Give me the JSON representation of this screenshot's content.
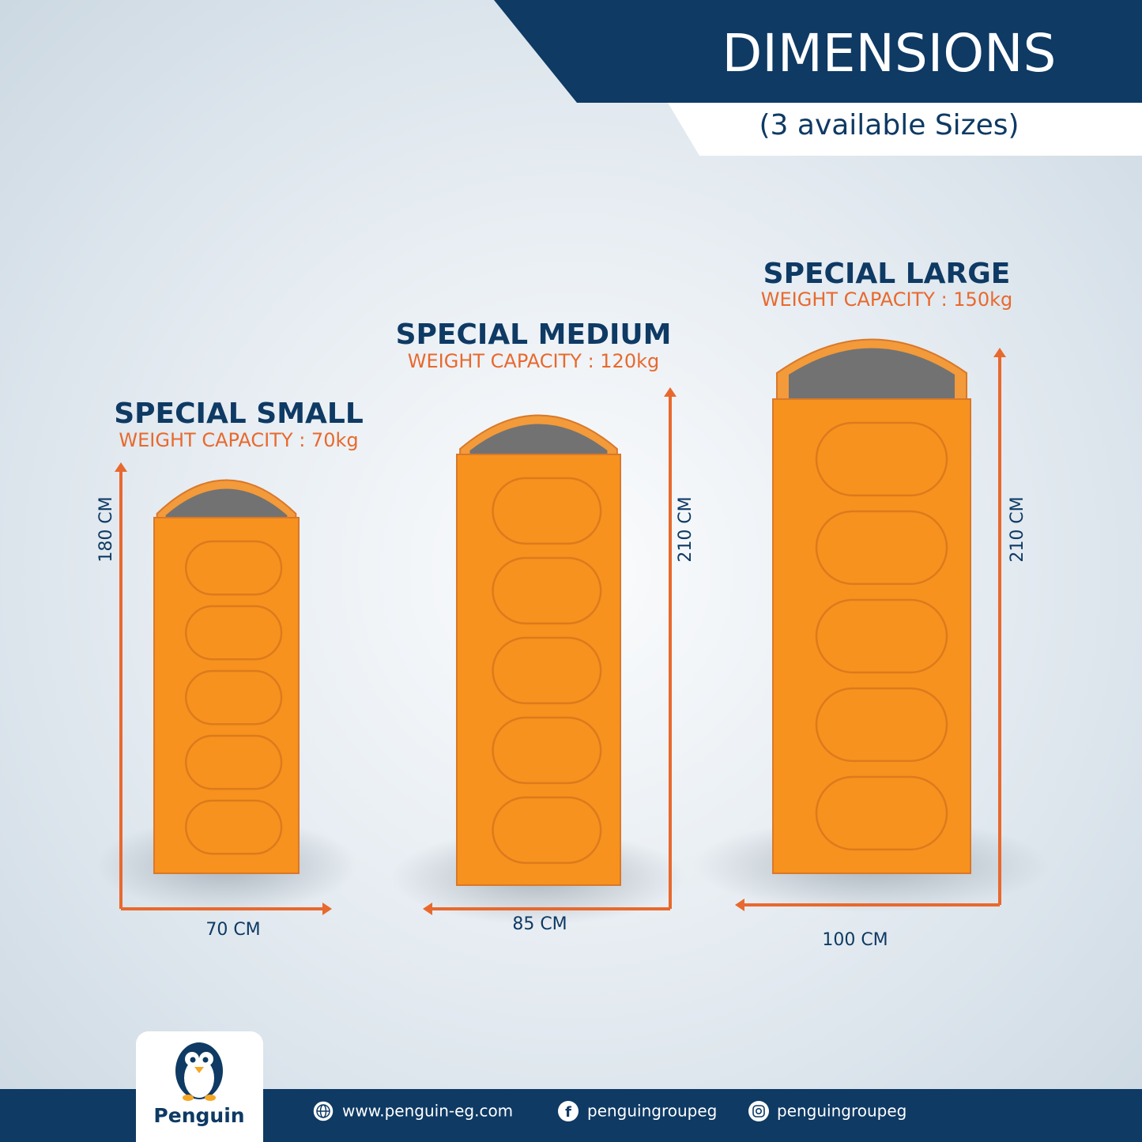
{
  "header": {
    "title": "DIMENSIONS",
    "subtitle": "(3 available Sizes)"
  },
  "products": [
    {
      "name": "SPECIAL SMALL",
      "capacity": "WEIGHT CAPACITY : 70kg",
      "length": "180 CM",
      "width": "70 CM"
    },
    {
      "name": "SPECIAL MEDIUM",
      "capacity": "WEIGHT CAPACITY : 120kg",
      "length": "210 CM",
      "width": "85 CM"
    },
    {
      "name": "SPECIAL LARGE",
      "capacity": "WEIGHT CAPACITY : 150kg",
      "length": "210 CM",
      "width": "100 CM"
    }
  ],
  "footer": {
    "brand": "Penguin",
    "website": "www.penguin-eg.com",
    "facebook": "penguingroupeg",
    "instagram": "penguingroupeg"
  }
}
